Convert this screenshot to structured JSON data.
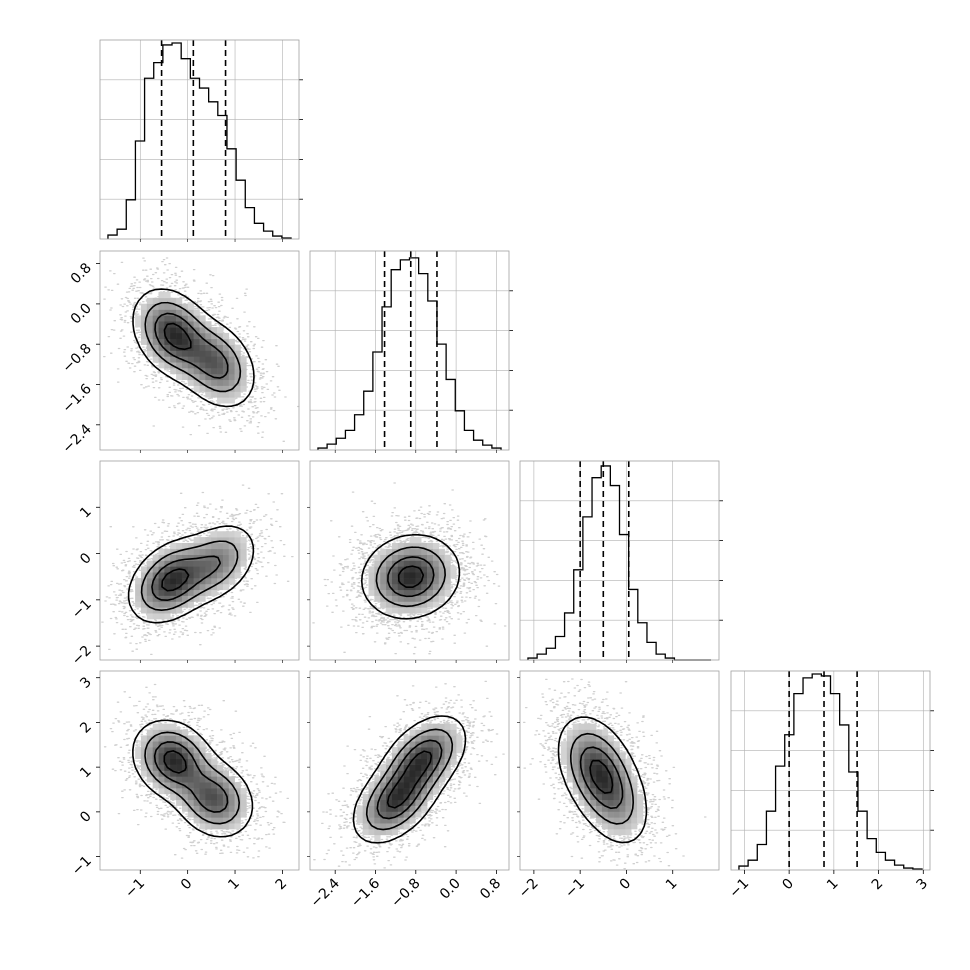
{
  "chart_data": {
    "type": "corner",
    "params": [
      {
        "range": [
          -1.85,
          2.35
        ],
        "ticks": [
          -1,
          0,
          1,
          2
        ],
        "tick_labels": [
          "−1",
          "0",
          "1",
          "2"
        ],
        "quantiles": [
          -0.55,
          0.12,
          0.8
        ],
        "hist_ylim": [
          0,
          1
        ],
        "hist": [
          0.02,
          0.05,
          0.2,
          0.5,
          0.82,
          0.9,
          0.99,
          1.0,
          0.92,
          0.82,
          0.77,
          0.7,
          0.63,
          0.46,
          0.3,
          0.16,
          0.08,
          0.04,
          0.015,
          0.005
        ]
      },
      {
        "range": [
          -2.9,
          1.05
        ],
        "ticks": [
          -2.4,
          -1.6,
          -0.8,
          0.0,
          0.8
        ],
        "tick_labels": [
          "−2.4",
          "−1.6",
          "−0.8",
          "0.0",
          "0.8"
        ],
        "quantiles": [
          -1.42,
          -0.9,
          -0.38
        ],
        "hist_ylim": [
          0,
          1
        ],
        "hist": [
          0.01,
          0.03,
          0.06,
          0.1,
          0.18,
          0.3,
          0.5,
          0.73,
          0.92,
          0.97,
          0.98,
          0.9,
          0.76,
          0.54,
          0.36,
          0.2,
          0.1,
          0.05,
          0.025,
          0.01
        ]
      },
      {
        "range": [
          -2.3,
          2.0
        ],
        "ticks": [
          -2,
          -1,
          0,
          1
        ],
        "tick_labels": [
          "−2",
          "−1",
          "0",
          "1"
        ],
        "quantiles": [
          -1.0,
          -0.5,
          0.05
        ],
        "hist_ylim": [
          0,
          1
        ],
        "hist": [
          0.01,
          0.03,
          0.06,
          0.12,
          0.24,
          0.46,
          0.73,
          0.93,
          0.99,
          0.89,
          0.64,
          0.36,
          0.19,
          0.09,
          0.03,
          0.01,
          0.0,
          0.0,
          0.0,
          0.0
        ]
      },
      {
        "range": [
          -1.3,
          3.15
        ],
        "ticks": [
          -1,
          0,
          1,
          2,
          3
        ],
        "tick_labels": [
          "−1",
          "0",
          "1",
          "2",
          "3"
        ],
        "quantiles": [
          0.0,
          0.78,
          1.52
        ],
        "hist_ylim": [
          0,
          1
        ],
        "hist": [
          0.02,
          0.05,
          0.13,
          0.3,
          0.53,
          0.69,
          0.9,
          0.98,
          1.0,
          0.99,
          0.9,
          0.74,
          0.5,
          0.3,
          0.16,
          0.09,
          0.05,
          0.025,
          0.01,
          0.005
        ]
      }
    ],
    "pairs": [
      {
        "row": 1,
        "col": 0,
        "peaks": [
          {
            "x": -0.3,
            "y": -0.6,
            "w": 1.0
          },
          {
            "x": 0.6,
            "y": -1.2,
            "w": 0.75
          }
        ],
        "sx": 0.4,
        "sy": 0.42,
        "rho": -0.3
      },
      {
        "row": 2,
        "col": 0,
        "peaks": [
          {
            "x": -0.35,
            "y": -0.6,
            "w": 1.0
          },
          {
            "x": 0.6,
            "y": -0.2,
            "w": 0.6
          }
        ],
        "sx": 0.42,
        "sy": 0.42,
        "rho": 0.35
      },
      {
        "row": 2,
        "col": 1,
        "peaks": [
          {
            "x": -0.9,
            "y": -0.5,
            "w": 1.0
          }
        ],
        "sx": 0.45,
        "sy": 0.42,
        "rho": 0.1
      },
      {
        "row": 3,
        "col": 0,
        "peaks": [
          {
            "x": -0.3,
            "y": 1.15,
            "w": 1.0
          },
          {
            "x": 0.55,
            "y": 0.3,
            "w": 0.8
          }
        ],
        "sx": 0.4,
        "sy": 0.42,
        "rho": -0.2
      },
      {
        "row": 3,
        "col": 1,
        "peaks": [
          {
            "x": -1.2,
            "y": 0.25,
            "w": 0.9
          },
          {
            "x": -0.65,
            "y": 1.2,
            "w": 0.9
          }
        ],
        "sx": 0.4,
        "sy": 0.45,
        "rho": 0.45
      },
      {
        "row": 3,
        "col": 2,
        "peaks": [
          {
            "x": -0.65,
            "y": 1.0,
            "w": 1.0
          },
          {
            "x": -0.3,
            "y": 0.3,
            "w": 0.6
          }
        ],
        "sx": 0.4,
        "sy": 0.55,
        "rho": -0.35
      }
    ],
    "colors": {
      "hist": "#000000",
      "contour": "#000000",
      "density": "#000000",
      "points": "#555555",
      "grid": "#b0b0b0",
      "frame": "#a0a0a0"
    }
  }
}
